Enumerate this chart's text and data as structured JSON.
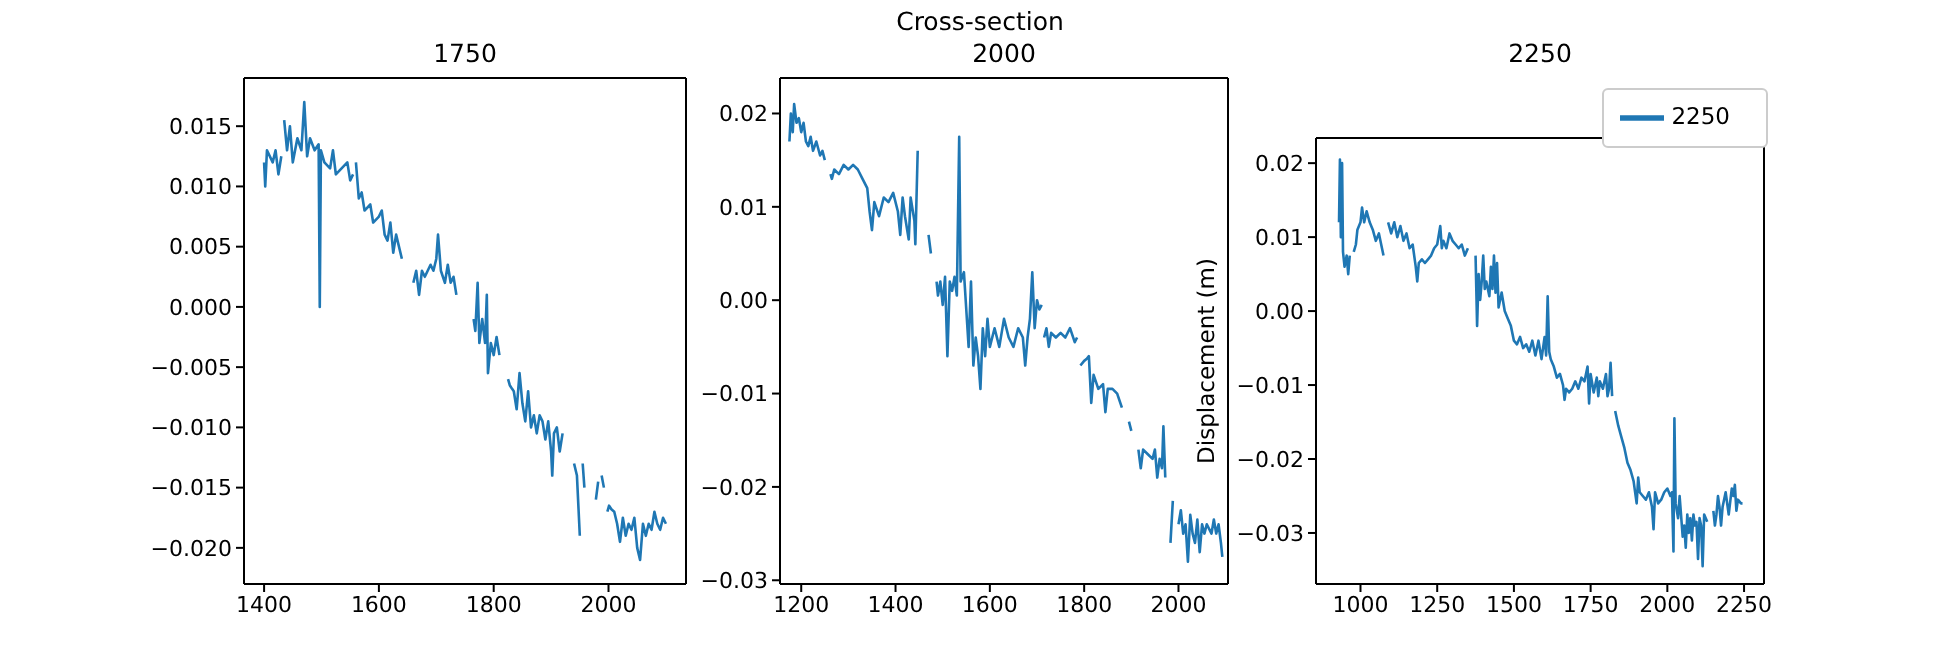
{
  "chart_data": [
    {
      "type": "line",
      "title": "1750",
      "xlim": [
        1365,
        2135
      ],
      "xticks": [
        1400,
        1600,
        1800,
        2000
      ],
      "ylim": [
        -0.023,
        0.019
      ],
      "yticks": [
        {
          "value": -0.02,
          "label": "−0.020"
        },
        {
          "value": -0.015,
          "label": "−0.015"
        },
        {
          "value": -0.01,
          "label": "−0.010"
        },
        {
          "value": -0.005,
          "label": "−0.005"
        },
        {
          "value": 0,
          "label": "0.000"
        },
        {
          "value": 0.005,
          "label": "0.005"
        },
        {
          "value": 0.01,
          "label": "0.010"
        },
        {
          "value": 0.015,
          "label": "0.015"
        }
      ],
      "grid": false,
      "legend": false,
      "x": [
        1400,
        1402,
        1405,
        1415,
        1420,
        1425,
        1430,
        1432,
        1435,
        1440,
        1445,
        1450,
        1458,
        1465,
        1470,
        1475,
        1480,
        1488,
        1495,
        1497,
        1499,
        1505,
        1515,
        1520,
        1525,
        1535,
        1545,
        1550,
        1555,
        1557,
        1560,
        1565,
        1570,
        1575,
        1585,
        1590,
        1600,
        1605,
        1610,
        1615,
        1620,
        1625,
        1630,
        1640,
        1650,
        1660,
        1665,
        1670,
        1675,
        1680,
        1690,
        1695,
        1700,
        1703,
        1708,
        1715,
        1720,
        1725,
        1730,
        1735,
        1750,
        1765,
        1768,
        1772,
        1775,
        1780,
        1785,
        1788,
        1790,
        1795,
        1800,
        1805,
        1810,
        1818,
        1825,
        1828,
        1832,
        1835,
        1840,
        1845,
        1850,
        1855,
        1860,
        1865,
        1870,
        1875,
        1880,
        1885,
        1890,
        1895,
        1900,
        1902,
        1905,
        1910,
        1915,
        1920,
        1930,
        1940,
        1945,
        1950,
        1952,
        1955,
        1958,
        1968,
        1978,
        1982,
        1985,
        1988,
        1992,
        1995,
        1998,
        2001,
        2005,
        2010,
        2015,
        2020,
        2025,
        2030,
        2035,
        2040,
        2045,
        2050,
        2055,
        2060,
        2065,
        2070,
        2075,
        2080,
        2085,
        2090,
        2095,
        2100
      ],
      "series": [
        {
          "color": "#1f77b4",
          "values": [
            0.012,
            0.01,
            0.013,
            0.012,
            0.013,
            0.011,
            0.0125,
            null,
            0.0155,
            0.013,
            0.015,
            0.012,
            0.014,
            0.013,
            0.017,
            0.0125,
            0.014,
            0.013,
            0.0135,
            0.0,
            0.013,
            0.012,
            0.0115,
            0.013,
            0.011,
            0.0115,
            0.012,
            0.0105,
            0.011,
            null,
            0.012,
            0.009,
            0.0095,
            0.008,
            0.0085,
            0.007,
            0.0075,
            0.008,
            0.006,
            0.0055,
            0.007,
            0.0045,
            0.006,
            0.004,
            null,
            0.002,
            0.003,
            0.001,
            0.003,
            0.0025,
            0.0035,
            0.003,
            0.004,
            0.006,
            0.003,
            0.002,
            0.0035,
            0.002,
            0.0025,
            0.001,
            null,
            -0.001,
            -0.002,
            0.002,
            -0.003,
            -0.001,
            -0.003,
            0.001,
            -0.0055,
            -0.003,
            -0.004,
            -0.0025,
            -0.004,
            null,
            -0.006,
            -0.0065,
            -0.0068,
            -0.007,
            -0.0085,
            -0.0055,
            -0.008,
            -0.0095,
            -0.007,
            -0.01,
            -0.009,
            -0.0105,
            -0.009,
            -0.0095,
            -0.011,
            -0.0095,
            -0.012,
            -0.014,
            -0.0105,
            -0.01,
            -0.012,
            -0.0105,
            null,
            -0.013,
            -0.014,
            -0.019,
            null,
            -0.013,
            -0.015,
            null,
            -0.016,
            -0.0145,
            null,
            -0.014,
            -0.015,
            null,
            -0.017,
            -0.0165,
            -0.0168,
            -0.017,
            -0.018,
            -0.0195,
            -0.0175,
            -0.019,
            -0.018,
            -0.0185,
            -0.0175,
            -0.02,
            -0.021,
            -0.018,
            -0.019,
            -0.018,
            -0.0185,
            -0.017,
            -0.018,
            -0.0185,
            -0.0175,
            -0.018
          ]
        }
      ]
    },
    {
      "type": "line",
      "title": "Cross-section",
      "subtitle": "2000",
      "xlim": [
        1155,
        2105
      ],
      "xticks": [
        1200,
        1400,
        1600,
        1800,
        2000
      ],
      "ylim": [
        -0.0304,
        0.0238
      ],
      "yticks": [
        {
          "value": -0.03,
          "label": "−0.03"
        },
        {
          "value": -0.02,
          "label": "−0.02"
        },
        {
          "value": -0.01,
          "label": "−0.01"
        },
        {
          "value": 0,
          "label": "0.00"
        },
        {
          "value": 0.01,
          "label": "0.01"
        },
        {
          "value": 0.02,
          "label": "0.02"
        }
      ],
      "grid": false,
      "legend": false,
      "x": [
        1175,
        1178,
        1182,
        1185,
        1190,
        1195,
        1200,
        1205,
        1210,
        1215,
        1220,
        1225,
        1232,
        1240,
        1245,
        1250,
        1255,
        1262,
        1265,
        1270,
        1280,
        1290,
        1300,
        1310,
        1320,
        1330,
        1340,
        1345,
        1350,
        1355,
        1365,
        1375,
        1385,
        1395,
        1405,
        1410,
        1415,
        1420,
        1428,
        1432,
        1440,
        1442,
        1447,
        1455,
        1470,
        1475,
        1480,
        1487,
        1490,
        1495,
        1500,
        1505,
        1510,
        1515,
        1520,
        1525,
        1530,
        1535,
        1538,
        1545,
        1550,
        1555,
        1560,
        1565,
        1570,
        1575,
        1580,
        1585,
        1590,
        1595,
        1600,
        1610,
        1620,
        1630,
        1640,
        1650,
        1660,
        1670,
        1675,
        1680,
        1685,
        1690,
        1695,
        1700,
        1705,
        1710,
        1712,
        1715,
        1720,
        1725,
        1730,
        1740,
        1750,
        1760,
        1770,
        1780,
        1785,
        1788,
        1792,
        1800,
        1805,
        1810,
        1815,
        1820,
        1830,
        1840,
        1845,
        1850,
        1860,
        1870,
        1880,
        1885,
        1895,
        1900,
        1908,
        1915,
        1920,
        1925,
        1935,
        1945,
        1950,
        1955,
        1960,
        1965,
        1968,
        1972,
        1978,
        1983,
        1988,
        1992,
        2000,
        2005,
        2010,
        2015,
        2020,
        2025,
        2030,
        2035,
        2040,
        2045,
        2050,
        2055,
        2060,
        2070,
        2075,
        2080,
        2085,
        2090,
        2093
      ],
      "series": [
        {
          "color": "#1f77b4",
          "values": [
            0.017,
            0.02,
            0.018,
            0.021,
            0.019,
            0.0195,
            0.018,
            0.019,
            0.017,
            0.0165,
            0.0175,
            0.016,
            0.017,
            0.0155,
            0.016,
            0.015,
            null,
            0.0135,
            0.013,
            0.014,
            0.0135,
            0.0145,
            0.014,
            0.0145,
            0.014,
            0.013,
            0.012,
            0.0095,
            0.0075,
            0.0105,
            0.009,
            0.011,
            0.0105,
            0.0115,
            0.0095,
            0.007,
            0.011,
            0.009,
            0.0065,
            0.011,
            0.0085,
            0.006,
            0.016,
            null,
            0.007,
            0.005,
            null,
            0.002,
            0.0005,
            0.002,
            -0.0005,
            0.0025,
            -0.006,
            0.002,
            0.001,
            0.0025,
            0.0005,
            0.0175,
            0.002,
            0.003,
            -0.001,
            -0.005,
            0.002,
            -0.007,
            -0.004,
            -0.006,
            -0.0095,
            -0.003,
            -0.006,
            -0.002,
            -0.005,
            -0.003,
            -0.005,
            -0.002,
            -0.004,
            -0.005,
            -0.003,
            -0.004,
            -0.007,
            -0.004,
            -0.002,
            0.003,
            -0.003,
            0.0,
            -0.001,
            -0.0005,
            null,
            -0.004,
            -0.003,
            -0.005,
            -0.0035,
            -0.004,
            -0.0035,
            -0.004,
            -0.003,
            -0.0045,
            -0.004,
            null,
            -0.007,
            -0.0065,
            -0.0063,
            -0.006,
            -0.011,
            -0.008,
            -0.0095,
            -0.009,
            -0.012,
            -0.0095,
            -0.0095,
            -0.01,
            -0.0115,
            null,
            -0.013,
            -0.014,
            null,
            -0.016,
            -0.018,
            -0.016,
            -0.0165,
            -0.017,
            -0.016,
            -0.019,
            -0.017,
            -0.018,
            -0.0135,
            -0.019,
            null,
            -0.026,
            -0.0215,
            null,
            -0.024,
            -0.0225,
            -0.025,
            -0.024,
            -0.028,
            -0.023,
            -0.025,
            -0.026,
            -0.0235,
            -0.027,
            -0.024,
            -0.025,
            -0.024,
            -0.025,
            -0.0235,
            -0.025,
            -0.024,
            -0.026,
            -0.0275
          ]
        }
      ]
    },
    {
      "type": "line",
      "title": "2250",
      "ylabel": "Displacement (m)",
      "xlim": [
        855,
        2315
      ],
      "xticks": [
        1000,
        1250,
        1500,
        1750,
        2000,
        2250
      ],
      "ylim": [
        -0.0369,
        0.0234
      ],
      "yticks": [
        {
          "value": -0.03,
          "label": "−0.03"
        },
        {
          "value": -0.02,
          "label": "−0.02"
        },
        {
          "value": -0.01,
          "label": "−0.01"
        },
        {
          "value": 0,
          "label": "0.00"
        },
        {
          "value": 0.01,
          "label": "0.01"
        },
        {
          "value": 0.02,
          "label": "0.02"
        }
      ],
      "grid": false,
      "legend": "top right",
      "x": [
        930,
        933,
        936,
        940,
        943,
        948,
        955,
        960,
        965,
        970,
        978,
        985,
        990,
        1000,
        1005,
        1012,
        1020,
        1030,
        1040,
        1050,
        1060,
        1070,
        1075,
        1080,
        1090,
        1100,
        1110,
        1120,
        1130,
        1140,
        1150,
        1160,
        1170,
        1180,
        1185,
        1190,
        1200,
        1210,
        1220,
        1230,
        1240,
        1250,
        1260,
        1265,
        1270,
        1280,
        1290,
        1300,
        1310,
        1320,
        1330,
        1340,
        1350,
        1360,
        1375,
        1380,
        1385,
        1390,
        1395,
        1400,
        1405,
        1410,
        1420,
        1425,
        1430,
        1435,
        1440,
        1445,
        1450,
        1460,
        1470,
        1480,
        1490,
        1500,
        1510,
        1520,
        1530,
        1540,
        1550,
        1560,
        1570,
        1580,
        1590,
        1600,
        1605,
        1610,
        1615,
        1620,
        1630,
        1640,
        1650,
        1660,
        1665,
        1670,
        1680,
        1690,
        1700,
        1710,
        1720,
        1730,
        1740,
        1745,
        1750,
        1760,
        1770,
        1775,
        1780,
        1790,
        1800,
        1805,
        1810,
        1815,
        1820,
        1825,
        1830,
        1840,
        1850,
        1860,
        1870,
        1880,
        1890,
        1900,
        1905,
        1910,
        1920,
        1930,
        1940,
        1950,
        1955,
        1960,
        1970,
        1980,
        1990,
        2000,
        2010,
        2015,
        2020,
        2023,
        2027,
        2035,
        2040,
        2050,
        2055,
        2060,
        2065,
        2070,
        2075,
        2080,
        2085,
        2090,
        2095,
        2100,
        2105,
        2110,
        2115,
        2120,
        2130,
        2140,
        2150,
        2155,
        2160,
        2165,
        2170,
        2175,
        2180,
        2190,
        2200,
        2210,
        2215,
        2220,
        2225,
        2230,
        2240,
        2245
      ],
      "series": [
        {
          "name": "2250",
          "color": "#1f77b4",
          "values": [
            0.012,
            0.0205,
            0.01,
            0.02,
            0.008,
            0.006,
            0.0075,
            0.005,
            0.0075,
            null,
            0.008,
            0.009,
            0.011,
            0.012,
            0.014,
            0.012,
            0.0135,
            0.012,
            0.011,
            0.0095,
            0.0105,
            0.0085,
            0.0075,
            null,
            0.012,
            0.0105,
            0.012,
            0.01,
            0.0115,
            0.0095,
            0.0105,
            0.0085,
            0.009,
            0.006,
            0.004,
            0.0065,
            0.007,
            0.0065,
            0.007,
            0.0075,
            0.0085,
            0.009,
            0.0115,
            0.0085,
            0.0095,
            0.0085,
            0.0105,
            0.0095,
            0.009,
            0.0085,
            0.009,
            0.0075,
            0.0085,
            null,
            0.0075,
            -0.002,
            0.005,
            0.0015,
            0.004,
            0.0075,
            0.003,
            0.004,
            0.002,
            0.006,
            0.003,
            0.0075,
            0.0025,
            0.0065,
            0.0005,
            0.0025,
            0.0,
            -0.001,
            -0.002,
            -0.004,
            -0.0045,
            -0.0035,
            -0.005,
            -0.0045,
            -0.0055,
            -0.004,
            -0.006,
            -0.004,
            -0.0065,
            -0.0035,
            -0.006,
            0.002,
            -0.0055,
            -0.0065,
            -0.0075,
            -0.009,
            -0.0085,
            -0.01,
            -0.012,
            -0.0105,
            -0.011,
            -0.0105,
            -0.0095,
            -0.0105,
            -0.009,
            -0.0095,
            -0.0075,
            -0.0125,
            -0.0085,
            -0.011,
            -0.009,
            -0.0115,
            -0.0095,
            -0.0105,
            -0.0085,
            -0.0115,
            -0.0105,
            -0.007,
            -0.0115,
            null,
            -0.0135,
            -0.0155,
            -0.017,
            -0.0185,
            -0.0205,
            -0.0215,
            -0.023,
            -0.026,
            -0.0225,
            -0.0245,
            -0.025,
            -0.0255,
            -0.0245,
            -0.0265,
            -0.0295,
            -0.0245,
            -0.026,
            -0.0255,
            -0.0245,
            -0.024,
            -0.025,
            -0.0245,
            -0.0325,
            -0.0145,
            -0.026,
            -0.028,
            -0.025,
            -0.0305,
            -0.029,
            -0.032,
            -0.0275,
            -0.03,
            -0.028,
            -0.031,
            -0.0275,
            -0.029,
            -0.0285,
            -0.0335,
            -0.028,
            -0.029,
            -0.0345,
            -0.0275,
            -0.0285,
            null,
            -0.027,
            -0.029,
            -0.0275,
            -0.025,
            -0.0265,
            -0.029,
            -0.0265,
            -0.0245,
            -0.0275,
            -0.024,
            -0.025,
            -0.0235,
            -0.027,
            -0.0255,
            -0.026,
            -0.026
          ]
        }
      ]
    }
  ]
}
